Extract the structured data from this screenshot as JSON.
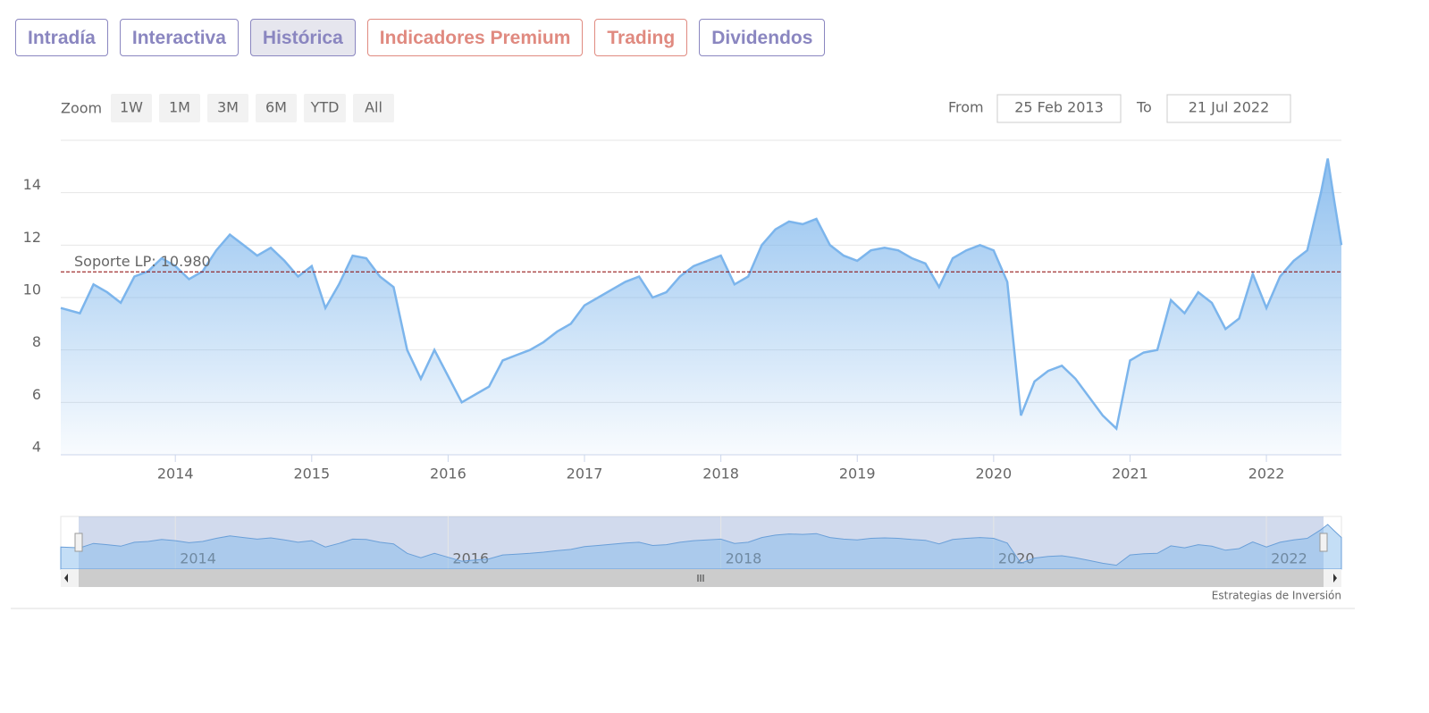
{
  "tabs": [
    "Intradía",
    "Interactiva",
    "Histórica",
    "Indicadores Premium",
    "Trading",
    "Dividendos"
  ],
  "active_tab": 2,
  "zoom": {
    "label": "Zoom",
    "buttons": [
      "1W",
      "1M",
      "3M",
      "6M",
      "YTD",
      "All"
    ],
    "disabled": 5
  },
  "range": {
    "from_label": "From",
    "from": "25 Feb 2013",
    "to_label": "To",
    "to": "21 Jul 2022"
  },
  "credits": "Estrategias de Inversión",
  "chart_data": {
    "type": "line",
    "color": "#7cb5ec",
    "x": [
      2013.16,
      2013.3,
      2013.4,
      2013.5,
      2013.6,
      2013.7,
      2013.8,
      2013.9,
      2014.0,
      2014.1,
      2014.2,
      2014.3,
      2014.4,
      2014.5,
      2014.6,
      2014.7,
      2014.8,
      2014.9,
      2015.0,
      2015.1,
      2015.2,
      2015.3,
      2015.4,
      2015.5,
      2015.6,
      2015.7,
      2015.8,
      2015.9,
      2016.0,
      2016.1,
      2016.2,
      2016.3,
      2016.4,
      2016.5,
      2016.6,
      2016.7,
      2016.8,
      2016.9,
      2017.0,
      2017.1,
      2017.2,
      2017.3,
      2017.4,
      2017.5,
      2017.6,
      2017.7,
      2017.8,
      2017.9,
      2018.0,
      2018.1,
      2018.2,
      2018.3,
      2018.4,
      2018.5,
      2018.6,
      2018.7,
      2018.8,
      2018.9,
      2019.0,
      2019.1,
      2019.2,
      2019.3,
      2019.4,
      2019.5,
      2019.6,
      2019.7,
      2019.8,
      2019.9,
      2020.0,
      2020.1,
      2020.2,
      2020.3,
      2020.4,
      2020.5,
      2020.6,
      2020.7,
      2020.8,
      2020.9,
      2021.0,
      2021.1,
      2021.2,
      2021.3,
      2021.4,
      2021.5,
      2021.6,
      2021.7,
      2021.8,
      2021.9,
      2022.0,
      2022.1,
      2022.2,
      2022.3,
      2022.4,
      2022.45,
      2022.5,
      2022.55
    ],
    "values": [
      9.6,
      9.4,
      10.5,
      10.2,
      9.8,
      10.8,
      11.0,
      11.5,
      11.2,
      10.7,
      11.0,
      11.8,
      12.4,
      12.0,
      11.6,
      11.9,
      11.4,
      10.8,
      11.2,
      9.6,
      10.5,
      11.6,
      11.5,
      10.8,
      10.4,
      8.0,
      6.9,
      8.0,
      7.0,
      6.0,
      6.3,
      6.6,
      7.6,
      7.8,
      8.0,
      8.3,
      8.7,
      9.0,
      9.7,
      10.0,
      10.3,
      10.6,
      10.8,
      10.0,
      10.2,
      10.8,
      11.2,
      11.4,
      11.6,
      10.5,
      10.8,
      12.0,
      12.6,
      12.9,
      12.8,
      13.0,
      12.0,
      11.6,
      11.4,
      11.8,
      11.9,
      11.8,
      11.5,
      11.3,
      10.4,
      11.5,
      11.8,
      12.0,
      11.8,
      10.6,
      5.5,
      6.8,
      7.2,
      7.4,
      6.9,
      6.2,
      5.5,
      5.0,
      7.6,
      7.9,
      8.0,
      9.9,
      9.4,
      10.2,
      9.8,
      8.8,
      9.2,
      10.9,
      9.6,
      10.8,
      11.4,
      11.8,
      14.0,
      15.3,
      13.6,
      12.0
    ],
    "xlim": [
      2013.16,
      2022.55
    ],
    "xticks": [
      2014,
      2015,
      2016,
      2017,
      2018,
      2019,
      2020,
      2021,
      2022
    ],
    "ylim": [
      4,
      16
    ],
    "yticks": [
      4,
      6,
      8,
      10,
      12,
      14
    ],
    "grid": true,
    "plot_line": {
      "value": 10.98,
      "label": "Soporte LP: 10.980",
      "color": "#8b0000"
    },
    "navigator_xticks": [
      2014,
      2016,
      2018,
      2020,
      2022
    ]
  }
}
